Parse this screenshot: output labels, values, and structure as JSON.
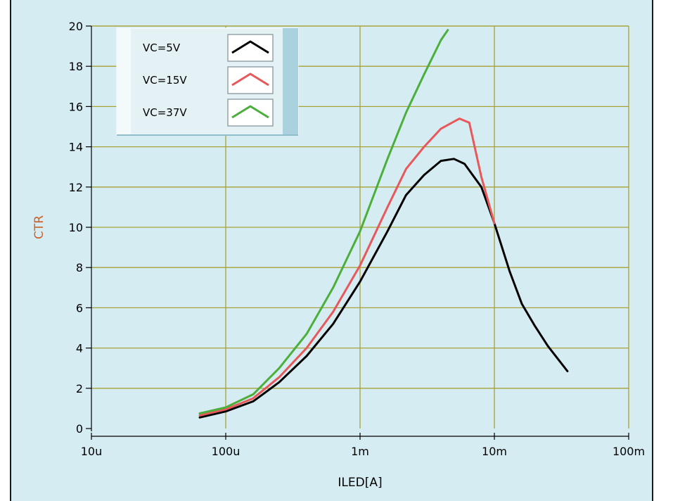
{
  "chart_data": {
    "type": "line",
    "title": "",
    "xlabel": "ILED[A]",
    "ylabel": "CTR",
    "x_scale": "log",
    "xlim": [
      1e-05,
      0.1
    ],
    "ylim": [
      0,
      20
    ],
    "x_ticks": [
      {
        "value": 1e-05,
        "label": "10u"
      },
      {
        "value": 0.0001,
        "label": "100u"
      },
      {
        "value": 0.001,
        "label": "1m"
      },
      {
        "value": 0.01,
        "label": "10m"
      },
      {
        "value": 0.1,
        "label": "100m"
      }
    ],
    "y_ticks": [
      {
        "value": 0,
        "label": "0"
      },
      {
        "value": 2,
        "label": "2"
      },
      {
        "value": 4,
        "label": "4"
      },
      {
        "value": 6,
        "label": "6"
      },
      {
        "value": 8,
        "label": "8"
      },
      {
        "value": 10,
        "label": "10"
      },
      {
        "value": 12,
        "label": "12"
      },
      {
        "value": 14,
        "label": "14"
      },
      {
        "value": 16,
        "label": "16"
      },
      {
        "value": 18,
        "label": "18"
      },
      {
        "value": 20,
        "label": "20"
      }
    ],
    "grid": true,
    "legend_position": "top-left",
    "series": [
      {
        "name": "VC=5V",
        "color": "#000000",
        "points": [
          [
            6.4e-05,
            0.55
          ],
          [
            0.0001,
            0.85
          ],
          [
            0.00016,
            1.35
          ],
          [
            0.00025,
            2.3
          ],
          [
            0.0004,
            3.6
          ],
          [
            0.00063,
            5.2
          ],
          [
            0.001,
            7.3
          ],
          [
            0.0016,
            9.8
          ],
          [
            0.0022,
            11.6
          ],
          [
            0.003,
            12.6
          ],
          [
            0.004,
            13.3
          ],
          [
            0.005,
            13.4
          ],
          [
            0.006,
            13.15
          ],
          [
            0.008,
            12.0
          ],
          [
            0.01,
            10.2
          ],
          [
            0.013,
            7.8
          ],
          [
            0.016,
            6.2
          ],
          [
            0.02,
            5.1
          ],
          [
            0.025,
            4.1
          ],
          [
            0.035,
            2.85
          ]
        ]
      },
      {
        "name": "VC=15V",
        "color": "#e8585a",
        "points": [
          [
            6.4e-05,
            0.65
          ],
          [
            0.0001,
            0.95
          ],
          [
            0.00016,
            1.5
          ],
          [
            0.00025,
            2.55
          ],
          [
            0.0004,
            4.0
          ],
          [
            0.00063,
            5.8
          ],
          [
            0.001,
            8.1
          ],
          [
            0.0016,
            11.0
          ],
          [
            0.0022,
            12.9
          ],
          [
            0.003,
            14.0
          ],
          [
            0.004,
            14.9
          ],
          [
            0.0055,
            15.4
          ],
          [
            0.0065,
            15.2
          ],
          [
            0.008,
            12.5
          ],
          [
            0.01,
            10.2
          ]
        ]
      },
      {
        "name": "VC=37V",
        "color": "#4caf3b",
        "points": [
          [
            6.4e-05,
            0.75
          ],
          [
            0.0001,
            1.05
          ],
          [
            0.00016,
            1.7
          ],
          [
            0.00025,
            3.0
          ],
          [
            0.0004,
            4.7
          ],
          [
            0.00063,
            7.0
          ],
          [
            0.001,
            9.8
          ],
          [
            0.0016,
            13.4
          ],
          [
            0.0022,
            15.7
          ],
          [
            0.003,
            17.6
          ],
          [
            0.004,
            19.3
          ],
          [
            0.0045,
            19.8
          ]
        ]
      }
    ]
  }
}
